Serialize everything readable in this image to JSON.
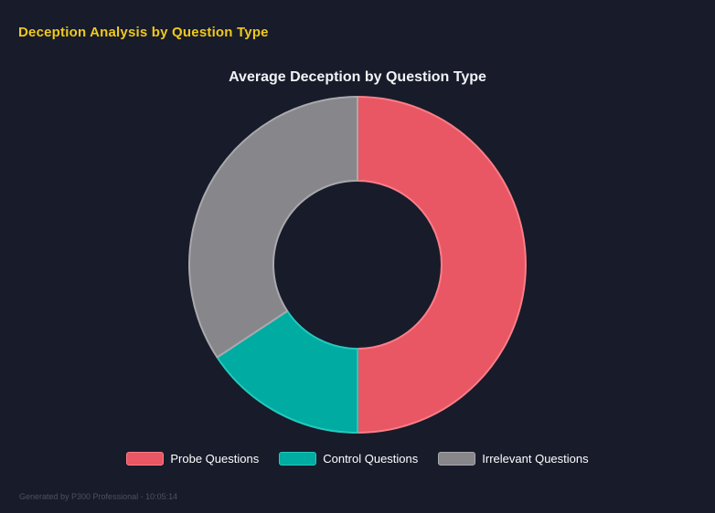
{
  "page": {
    "title": "Deception Analysis by Question Type",
    "title_color": "#f0c81e",
    "background_color": "#171b2a",
    "footer": "Generated by P300 Professional - 10:05:14"
  },
  "chart_data": {
    "type": "pie",
    "subtype": "donut",
    "title": "Average Deception by Question Type",
    "categories": [
      "Probe Questions",
      "Control Questions",
      "Irrelevant Questions"
    ],
    "values_percent": [
      50,
      15.7,
      34.3
    ],
    "colors": [
      "#e85763",
      "#00aba1",
      "#87878b"
    ],
    "border_colors": [
      "#fb7d88",
      "#24c9bd",
      "#a9a9ad"
    ],
    "start_angle_deg": 0,
    "direction": "clockwise",
    "inner_radius_ratio": 0.5,
    "legend_position": "bottom",
    "legend_text_color": "#ffffff",
    "title_color": "#f2f3f7"
  }
}
